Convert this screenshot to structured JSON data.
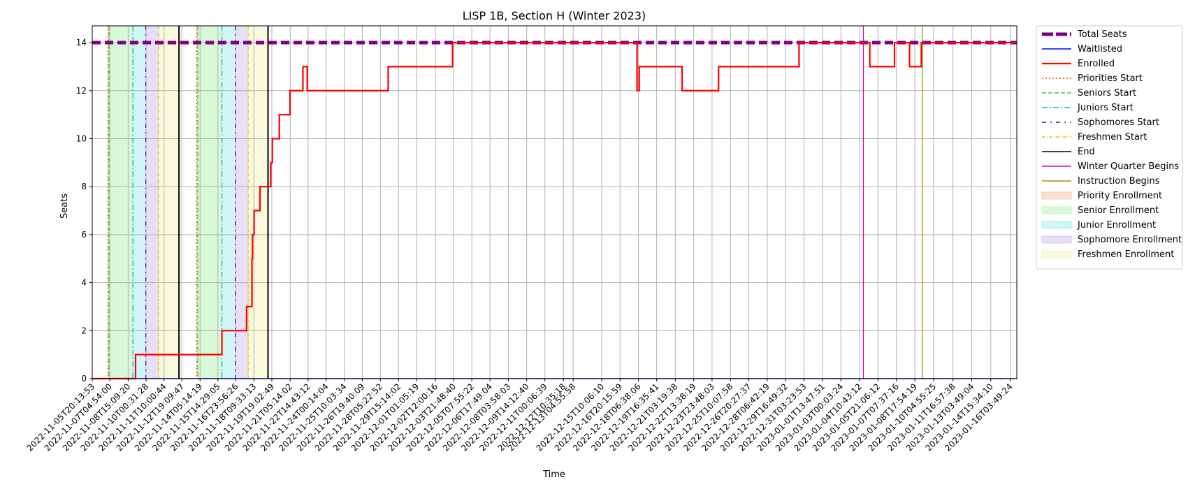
{
  "chart_data": {
    "type": "line",
    "title": "LISP 1B, Section H (Winter 2023)",
    "xlabel": "Time",
    "ylabel": "Seats",
    "ylim": [
      0,
      14.7
    ],
    "yticks": [
      0,
      2,
      4,
      6,
      8,
      10,
      12,
      14
    ],
    "xlim": [
      "2022-11-05T20:13:53",
      "2023-01-16T16:00:00"
    ],
    "grid": true,
    "legend_position": "outside-right",
    "xtick_labels": [
      "2022-11-05T20:13:53",
      "2022-11-07T04:54:00",
      "2022-11-08T15:09:20",
      "2022-11-10T00:31:28",
      "2022-11-11T10:00:44",
      "2022-11-12T19:09:47",
      "2022-11-14T05:14:19",
      "2022-11-15T14:29:05",
      "2022-11-16T23:56:26",
      "2022-11-18T09:33:13",
      "2022-11-19T19:02:49",
      "2022-11-21T05:14:02",
      "2022-11-22T14:43:12",
      "2022-11-24T00:14:04",
      "2022-11-25T10:03:34",
      "2022-11-26T19:40:09",
      "2022-11-28T05:22:52",
      "2022-11-29T15:14:02",
      "2022-12-01T01:05:19",
      "2022-12-02T12:00:16",
      "2022-12-03T21:48:40",
      "2022-12-05T07:55:22",
      "2022-12-06T17:49:04",
      "2022-12-08T03:58:03",
      "2022-12-09T14:12:40",
      "2022-12-11T00:06:39",
      "2022-12-12T10:35:18",
      "2022-12-13T04:55:58",
      "2022-12-15T10:06:10",
      "2022-12-16T20:15:59",
      "2022-12-18T06:38:06",
      "2022-12-19T16:35:41",
      "2022-12-21T03:19:38",
      "2022-12-22T13:38:19",
      "2022-12-23T23:48:03",
      "2022-12-25T10:07:58",
      "2022-12-26T20:27:37",
      "2022-12-28T06:42:19",
      "2022-12-29T16:49:32",
      "2022-12-31T03:23:53",
      "2023-01-01T13:47:51",
      "2023-01-03T00:03:24",
      "2023-01-04T10:43:12",
      "2023-01-05T21:06:12",
      "2023-01-07T07:37:16",
      "2023-01-08T17:54:19",
      "2023-01-10T04:55:25",
      "2023-01-11T16:57:38",
      "2023-01-13T03:49:04",
      "2023-01-14T15:34:10",
      "2023-01-16T03:49:24"
    ],
    "series": [
      {
        "name": "Total Seats",
        "color": "#800080",
        "style": "dashed-thick",
        "x": [
          "2022-11-05T20:13:53",
          "2023-01-16T16:00:00"
        ],
        "y": [
          14,
          14
        ]
      },
      {
        "name": "Waitlisted",
        "color": "#0000ff",
        "style": "solid-thin",
        "x": [
          "2022-11-05T20:13:53",
          "2023-01-16T16:00:00"
        ],
        "y": [
          0,
          0
        ]
      },
      {
        "name": "Enrolled",
        "color": "#ff0000",
        "style": "step",
        "x": [
          "2022-11-05T20:13:53",
          "2022-11-09T03:00:00",
          "2022-11-09T05:00:00",
          "2022-11-13T09:00:00",
          "2022-11-15T22:00:00",
          "2022-11-17T20:00:00",
          "2022-11-17T21:00:00",
          "2022-11-18T06:00:00",
          "2022-11-18T07:00:00",
          "2022-11-18T10:00:00",
          "2022-11-18T21:00:00",
          "2022-11-19T17:00:00",
          "2022-11-19T20:00:00",
          "2022-11-20T09:00:00",
          "2022-11-21T05:00:00",
          "2022-11-22T05:00:00",
          "2022-11-22T13:00:00",
          "2022-11-28T20:00:00",
          "2022-12-03T20:00:00",
          "2022-12-09T00:00:00",
          "2022-12-18T04:00:00",
          "2022-12-18T08:00:00",
          "2022-12-18T16:00:00",
          "2022-12-21T16:00:00",
          "2022-12-24T12:00:00",
          "2022-12-30T18:00:00",
          "2023-01-05T06:00:00",
          "2023-01-07T04:00:00",
          "2023-01-08T08:00:00",
          "2023-01-09T06:00:00",
          "2023-01-12T12:00:00",
          "2023-01-16T16:00:00"
        ],
        "y": [
          0,
          0,
          1,
          1,
          2,
          3,
          3,
          5,
          6,
          7,
          8,
          9,
          10,
          11,
          12,
          13,
          12,
          13,
          14,
          14,
          12,
          13,
          13,
          12,
          13,
          14,
          13,
          14,
          13,
          14,
          14,
          14
        ]
      },
      {
        "name": "Priorities Start",
        "color": "#ff4500",
        "style": "dotted",
        "x": [
          "2022-11-07T01:30:00",
          "2022-11-13T23:00:00"
        ]
      },
      {
        "name": "Seniors Start",
        "color": "#32cd32",
        "style": "dashed",
        "x": [
          "2022-11-07T03:30:00",
          "2022-11-14T01:00:00"
        ]
      },
      {
        "name": "Juniors Start",
        "color": "#00bfbf",
        "style": "dashdot",
        "x": [
          "2022-11-09T00:00:00",
          "2022-11-15T22:00:00"
        ]
      },
      {
        "name": "Sophomores Start",
        "color": "#6a0dad",
        "style": "loose-dashdot",
        "x": [
          "2022-11-10T00:00:00",
          "2022-11-16T23:00:00"
        ]
      },
      {
        "name": "Freshmen Start",
        "color": "#e6c200",
        "style": "dashdot-dense",
        "x": [
          "2022-11-11T00:00:00",
          "2022-11-17T23:00:00"
        ]
      },
      {
        "name": "End",
        "color": "#000000",
        "style": "solid",
        "x": [
          "2022-11-12T14:00:00",
          "2022-11-19T12:00:00"
        ]
      },
      {
        "name": "Winter Quarter Begins",
        "color": "#e0009a",
        "style": "solid",
        "x": [
          "2023-01-04T18:00:00"
        ]
      },
      {
        "name": "Instruction Begins",
        "color": "#7fa800",
        "style": "solid",
        "x": [
          "2023-01-09T08:00:00"
        ]
      }
    ],
    "regions": [
      {
        "name": "Priority Enrollment",
        "color": "#f4a582",
        "spans": [
          [
            "2022-11-07T01:30:00",
            "2022-11-07T03:30:00"
          ],
          [
            "2022-11-13T23:00:00",
            "2022-11-14T01:00:00"
          ]
        ]
      },
      {
        "name": "Senior Enrollment",
        "color": "#90ee90",
        "spans": [
          [
            "2022-11-07T03:30:00",
            "2022-11-09T00:00:00"
          ],
          [
            "2022-11-14T01:00:00",
            "2022-11-15T22:00:00"
          ]
        ]
      },
      {
        "name": "Junior Enrollment",
        "color": "#7fe5e5",
        "spans": [
          [
            "2022-11-09T00:00:00",
            "2022-11-10T00:00:00"
          ],
          [
            "2022-11-15T22:00:00",
            "2022-11-16T23:00:00"
          ]
        ]
      },
      {
        "name": "Sophomore Enrollment",
        "color": "#b9a0e8",
        "spans": [
          [
            "2022-11-10T00:00:00",
            "2022-11-11T00:00:00"
          ],
          [
            "2022-11-16T23:00:00",
            "2022-11-17T23:00:00"
          ]
        ]
      },
      {
        "name": "Freshmen Enrollment",
        "color": "#eeeea0",
        "spans": [
          [
            "2022-11-11T00:00:00",
            "2022-11-12T14:00:00"
          ],
          [
            "2022-11-17T23:00:00",
            "2022-11-19T12:00:00"
          ]
        ]
      }
    ]
  }
}
